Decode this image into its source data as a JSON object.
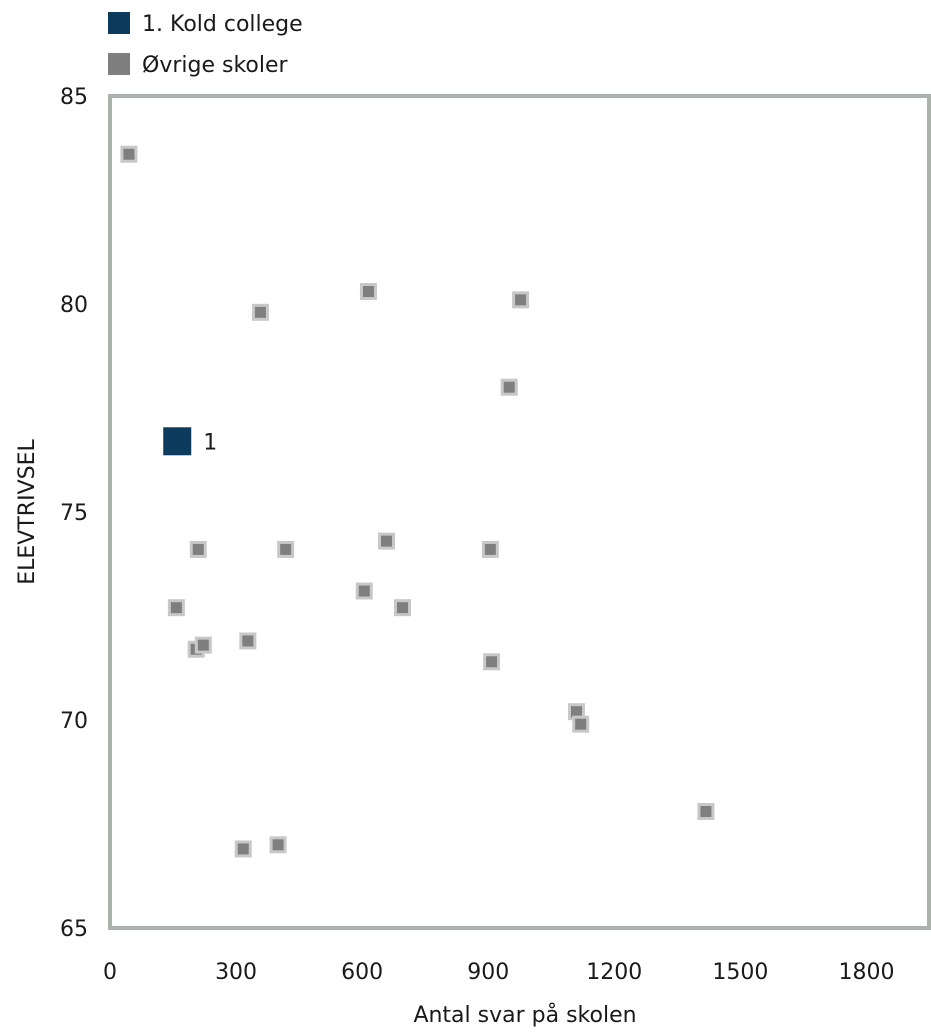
{
  "colors": {
    "highlight": "#0d3b5e",
    "other": "#7f7f7f",
    "other_border": "#c8c8c8",
    "axis": "#a9b2ad"
  },
  "chart_data": {
    "type": "scatter",
    "xlabel": "Antal svar på skolen",
    "ylabel": "ELEVTRIVSEL",
    "xlim": [
      0,
      1950
    ],
    "ylim": [
      65,
      85
    ],
    "xticks": [
      0,
      300,
      600,
      900,
      1200,
      1500,
      1800
    ],
    "yticks": [
      65,
      70,
      75,
      80,
      85
    ],
    "legend": {
      "placement": "top-left"
    },
    "series": [
      {
        "name": "1. Kold college",
        "points": [
          {
            "x": 160,
            "y": 76.7,
            "label": "1"
          }
        ]
      },
      {
        "name": "Øvrige skoler",
        "points": [
          {
            "x": 45,
            "y": 83.6
          },
          {
            "x": 358,
            "y": 79.8
          },
          {
            "x": 615,
            "y": 80.3
          },
          {
            "x": 977,
            "y": 80.1
          },
          {
            "x": 950,
            "y": 78.0
          },
          {
            "x": 210,
            "y": 74.1
          },
          {
            "x": 418,
            "y": 74.1
          },
          {
            "x": 658,
            "y": 74.3
          },
          {
            "x": 905,
            "y": 74.1
          },
          {
            "x": 158,
            "y": 72.7
          },
          {
            "x": 605,
            "y": 73.1
          },
          {
            "x": 696,
            "y": 72.7
          },
          {
            "x": 205,
            "y": 71.7
          },
          {
            "x": 222,
            "y": 71.8
          },
          {
            "x": 328,
            "y": 71.9
          },
          {
            "x": 908,
            "y": 71.4
          },
          {
            "x": 1110,
            "y": 70.2
          },
          {
            "x": 1120,
            "y": 69.9
          },
          {
            "x": 1418,
            "y": 67.8
          },
          {
            "x": 317,
            "y": 66.9
          },
          {
            "x": 400,
            "y": 67.0
          }
        ]
      }
    ]
  }
}
